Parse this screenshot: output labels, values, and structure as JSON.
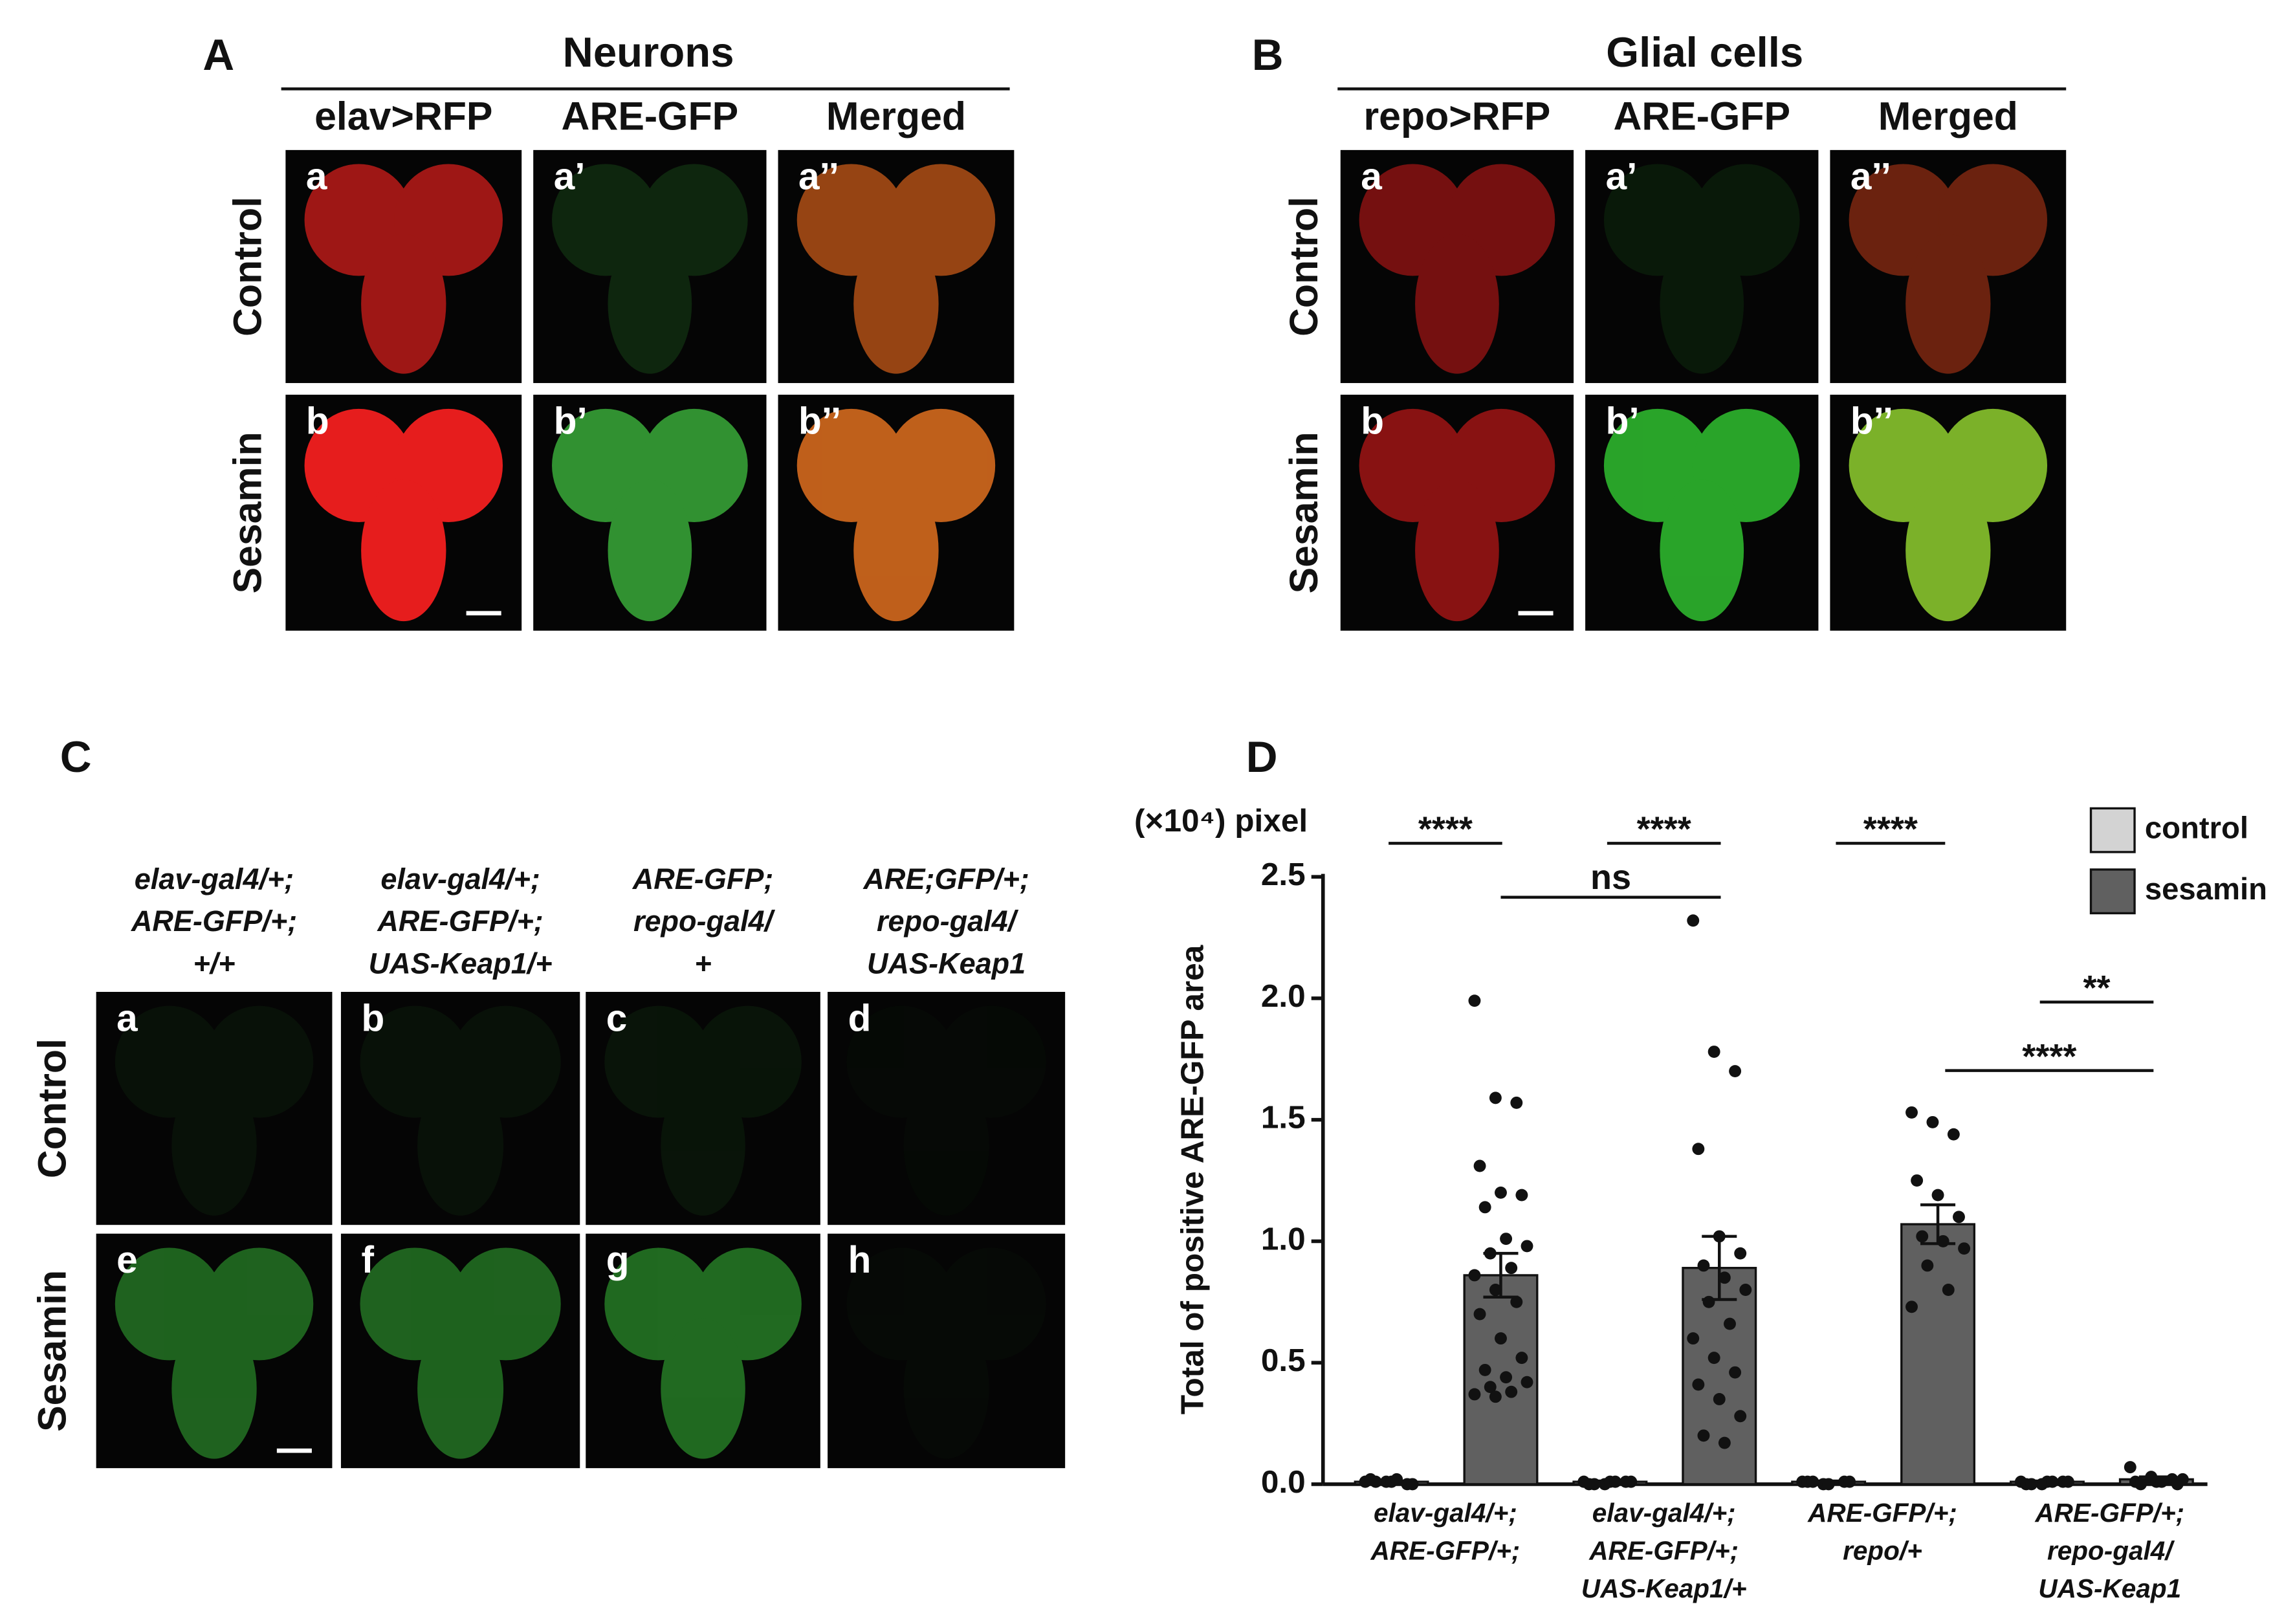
{
  "panels": {
    "A": {
      "letter": "A",
      "title": "Neurons",
      "columns": [
        "elav>RFP",
        "ARE-GFP",
        "Merged"
      ],
      "rows": [
        "Control",
        "Sesamin"
      ],
      "tiles": [
        "a",
        "a’",
        "a’’",
        "b",
        "b’",
        "b’’"
      ]
    },
    "B": {
      "letter": "B",
      "title": "Glial cells",
      "columns": [
        "repo>RFP",
        "ARE-GFP",
        "Merged"
      ],
      "rows": [
        "Control",
        "Sesamin"
      ],
      "tiles": [
        "a",
        "a’",
        "a’’",
        "b",
        "b’",
        "b’’"
      ]
    },
    "C": {
      "letter": "C",
      "columns": [
        [
          "elav-gal4/+;",
          "ARE-GFP/+;",
          "+/+"
        ],
        [
          "elav-gal4/+;",
          "ARE-GFP/+;",
          "UAS-Keap1/+"
        ],
        [
          "ARE-GFP;",
          "repo-gal4/",
          "+"
        ],
        [
          "ARE;GFP/+;",
          "repo-gal4/",
          "UAS-Keap1"
        ]
      ],
      "rows": [
        "Control",
        "Sesamin"
      ],
      "tiles": [
        "a",
        "b",
        "c",
        "d",
        "e",
        "f",
        "g",
        "h"
      ]
    }
  },
  "chart_data": {
    "type": "bar",
    "letter": "D",
    "y_unit": "(×10⁴) pixel",
    "ylabel": "Total of positive ARE-GFP area",
    "categories": [
      [
        "elav-gal4/+;",
        "ARE-GFP/+;"
      ],
      [
        "elav-gal4/+;",
        "ARE-GFP/+;",
        "UAS-Keap1/+"
      ],
      [
        "ARE-GFP/+;",
        "repo/+"
      ],
      [
        "ARE-GFP/+;",
        "repo-gal4/",
        "UAS-Keap1"
      ]
    ],
    "series": [
      {
        "name": "control",
        "color": "#d3d3d3",
        "values": [
          0.01,
          0.01,
          0.01,
          0.01
        ],
        "errors": [
          0.003,
          0.003,
          0.003,
          0.003
        ],
        "points": [
          [
            0.01,
            0.01,
            0,
            0.02,
            0.01,
            0,
            0.01,
            0.02
          ],
          [
            0.01,
            0,
            0.01,
            0,
            0.01,
            0.01,
            0,
            0.01
          ],
          [
            0.01,
            0,
            0.01,
            0.01,
            0,
            0.01,
            0.01
          ],
          [
            0.01,
            0,
            0.01,
            0,
            0.01,
            0.01,
            0,
            0.01
          ]
        ]
      },
      {
        "name": "sesamin",
        "color": "#606060",
        "values": [
          0.86,
          0.89,
          1.07,
          0.02
        ],
        "errors": [
          0.09,
          0.13,
          0.08,
          0.01
        ],
        "points": [
          [
            1.99,
            1.59,
            1.57,
            1.31,
            1.2,
            1.19,
            1.14,
            1.01,
            0.98,
            0.95,
            0.89,
            0.86,
            0.8,
            0.75,
            0.7,
            0.6,
            0.52,
            0.47,
            0.44,
            0.42,
            0.4,
            0.38,
            0.37,
            0.36
          ],
          [
            2.32,
            1.78,
            1.7,
            1.38,
            1.02,
            0.95,
            0.9,
            0.85,
            0.8,
            0.75,
            0.66,
            0.6,
            0.52,
            0.46,
            0.41,
            0.35,
            0.28,
            0.2,
            0.17
          ],
          [
            1.53,
            1.49,
            1.44,
            1.25,
            1.19,
            1.1,
            1.02,
            1.0,
            0.97,
            0.9,
            0.8,
            0.73
          ],
          [
            0.07,
            0.03,
            0.02,
            0.01,
            0.01,
            0,
            0,
            0.01,
            0.02
          ]
        ]
      }
    ],
    "ylim": [
      0,
      2.5
    ],
    "yticks": [
      {
        "value": 0,
        "label": "0.0"
      },
      0.5,
      {
        "value": 1,
        "label": "1.0"
      },
      1.5,
      {
        "value": 2,
        "label": "2.0"
      },
      2.5
    ],
    "annotations": [
      "****",
      "****",
      "****",
      "ns",
      "**",
      "****"
    ]
  }
}
